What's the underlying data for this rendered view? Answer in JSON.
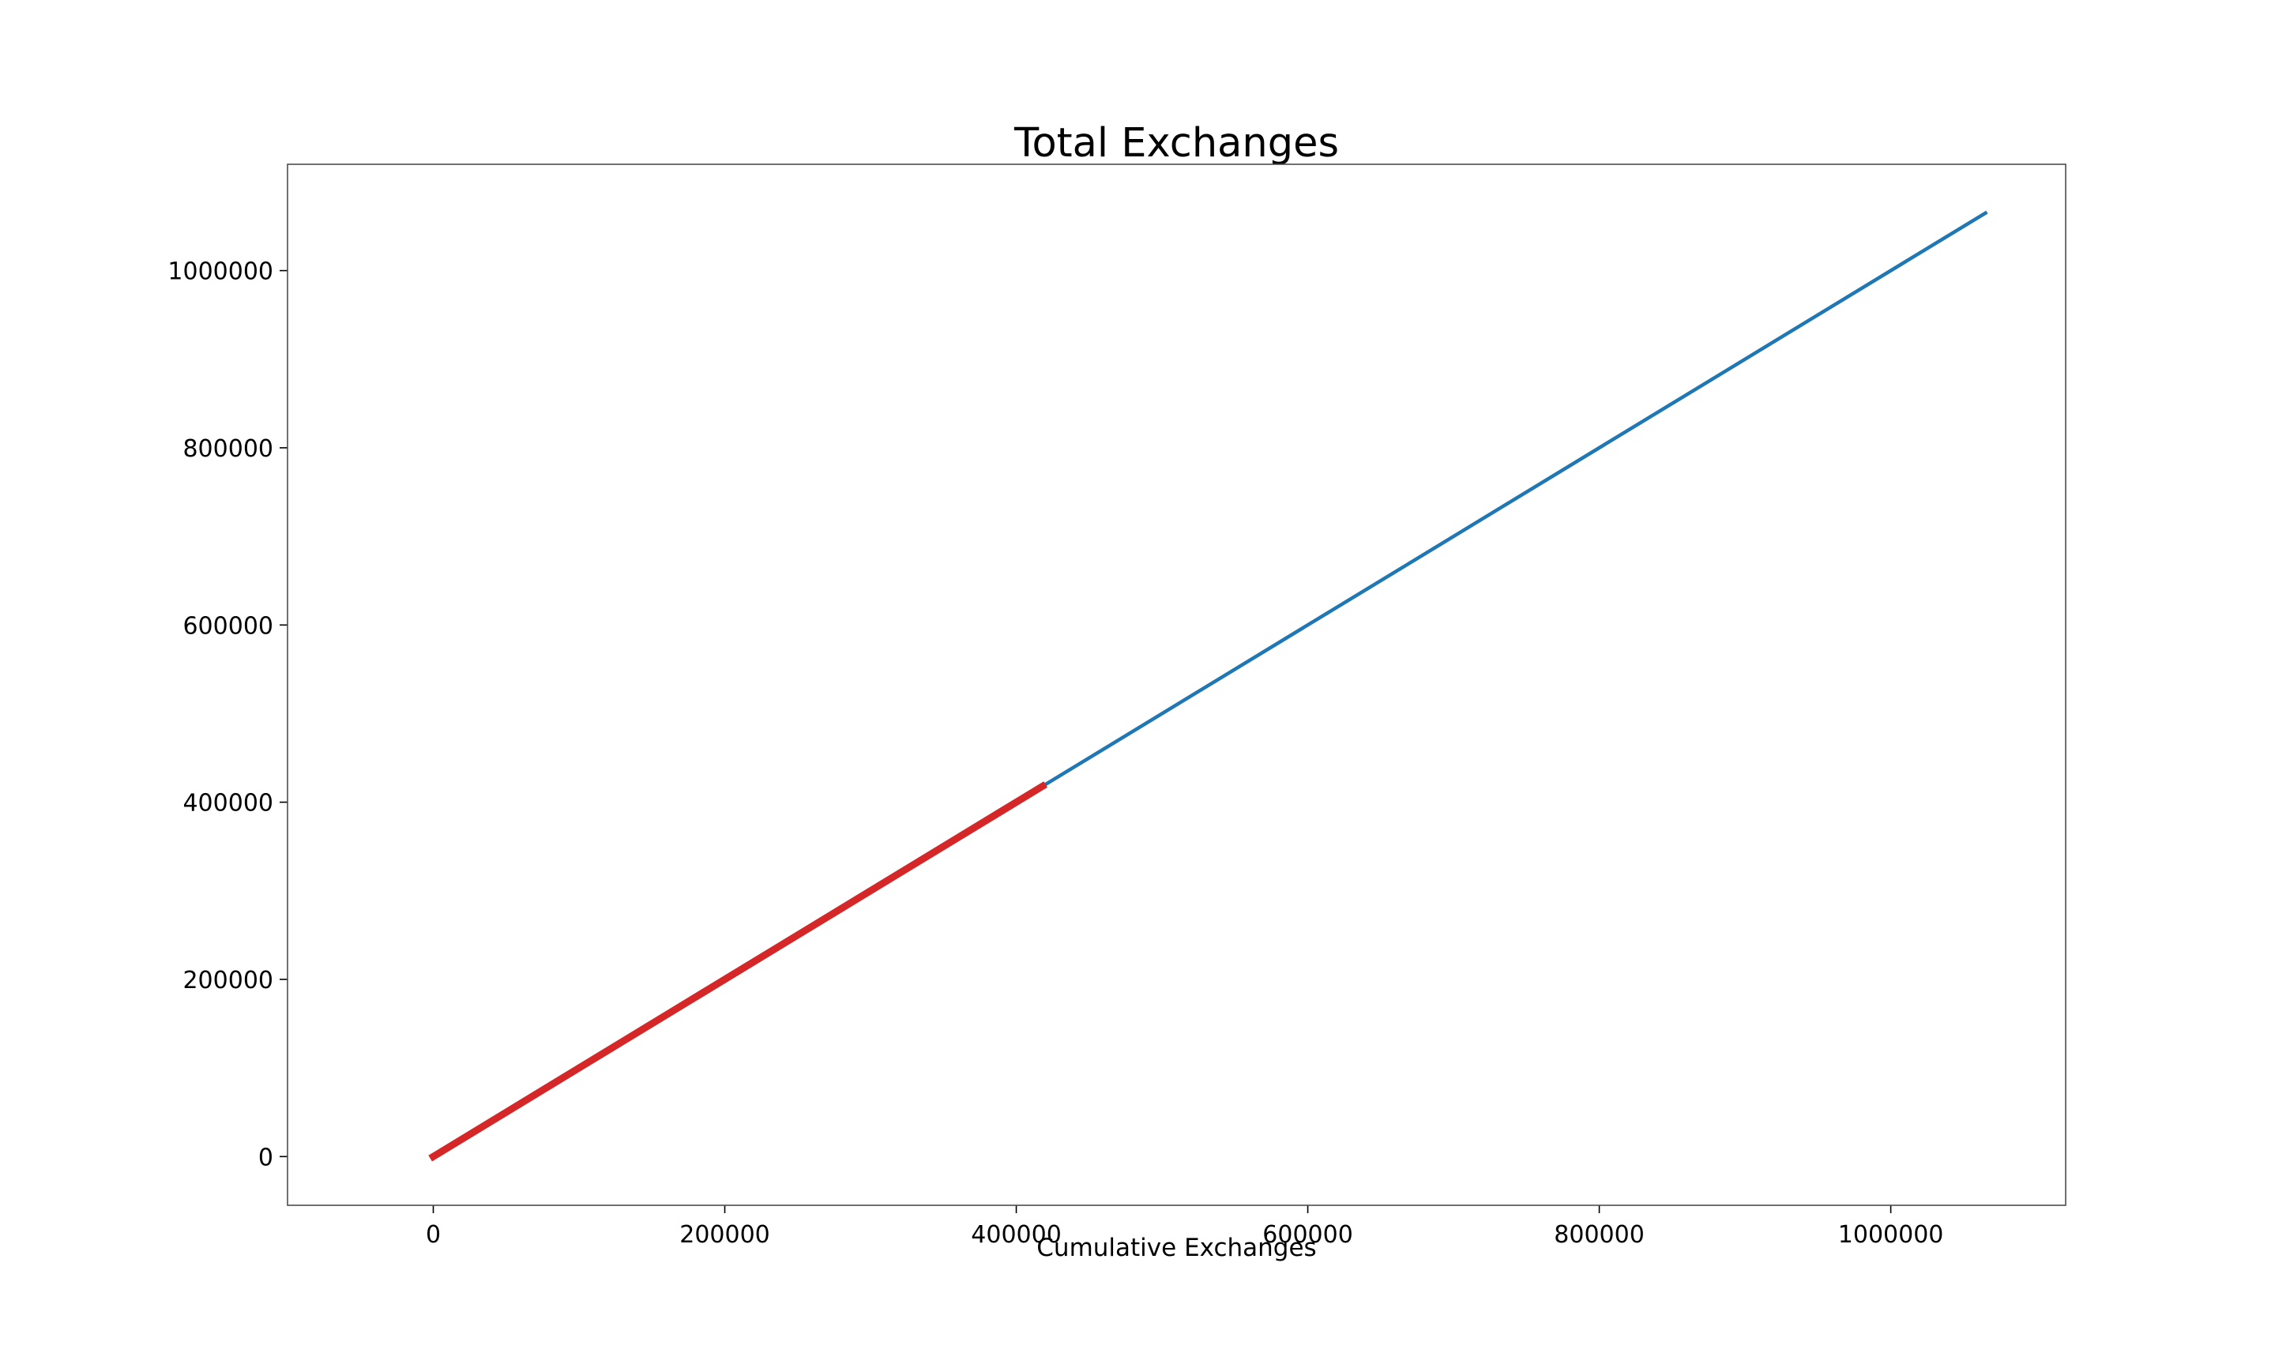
{
  "chart_data": {
    "type": "line",
    "title": "Total Exchanges",
    "xlabel": "Cumulative Exchanges",
    "ylabel": "",
    "xlim": [
      -100000,
      1120000
    ],
    "ylim": [
      -55000,
      1120000
    ],
    "x_ticks": [
      0,
      200000,
      400000,
      600000,
      800000,
      1000000
    ],
    "x_tick_labels": [
      "0",
      "200000",
      "400000",
      "600000",
      "800000",
      "1000000"
    ],
    "y_ticks": [
      0,
      200000,
      400000,
      600000,
      800000,
      1000000
    ],
    "y_tick_labels": [
      "0",
      "200000",
      "400000",
      "600000",
      "800000",
      "1000000"
    ],
    "grid": false,
    "legend": "none",
    "series": [
      {
        "color": "#1f77b4",
        "x": [
          0,
          1065000
        ],
        "y": [
          0,
          1065000
        ]
      },
      {
        "color": "#d62728",
        "x": [
          0,
          418000
        ],
        "y": [
          0,
          418000
        ]
      }
    ]
  }
}
